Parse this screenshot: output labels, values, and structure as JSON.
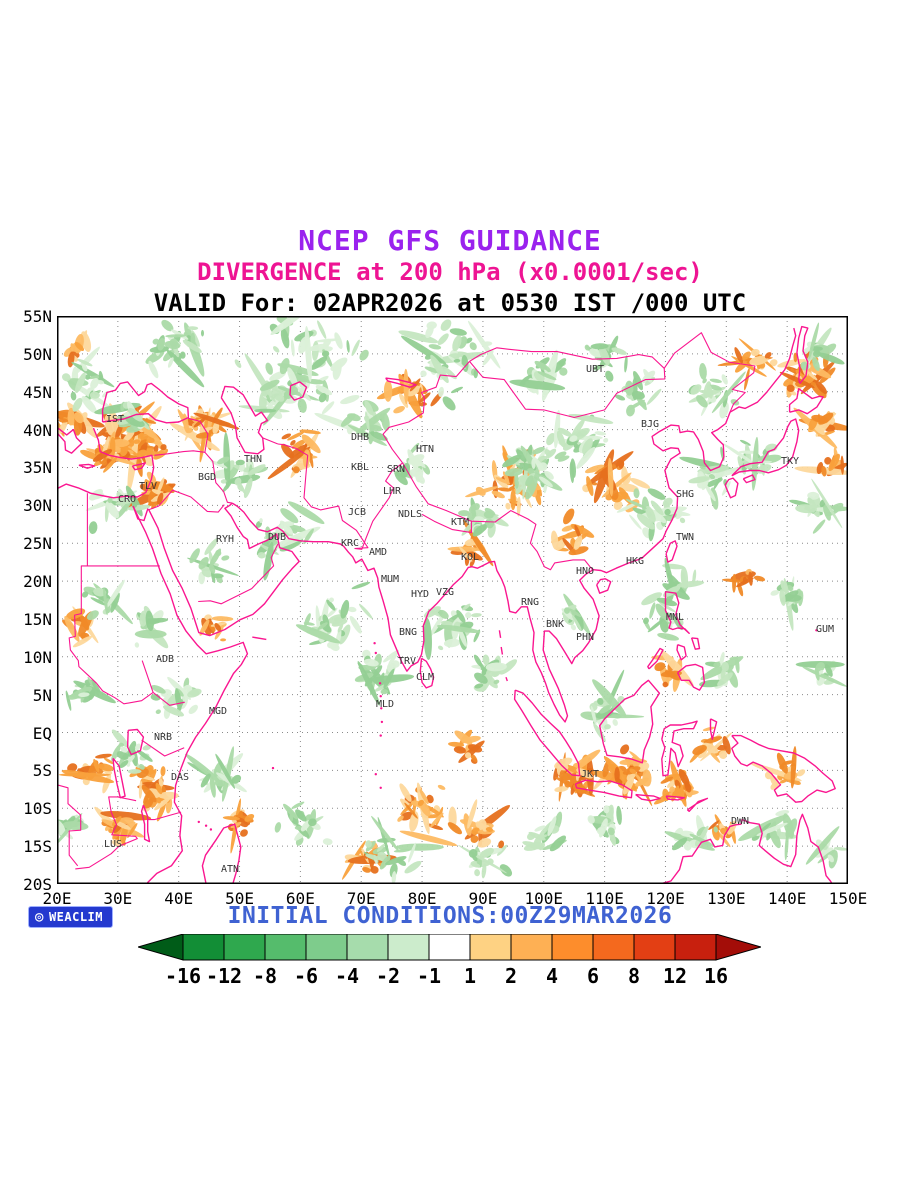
{
  "header": {
    "line1": "NCEP GFS GUIDANCE",
    "line2": "DIVERGENCE at 200 hPa (x0.0001/sec)",
    "line3": "VALID For: 02APR2026 at 0530 IST /000 UTC",
    "line1_color": "#9a22ee",
    "line2_color": "#ee1493",
    "line3_color": "#000000"
  },
  "map": {
    "lon_min": 20,
    "lon_max": 150,
    "lat_min": -20,
    "lat_max": 55,
    "lat_ticks": [
      "55N",
      "50N",
      "45N",
      "40N",
      "35N",
      "30N",
      "25N",
      "20N",
      "15N",
      "10N",
      "5N",
      "EQ",
      "5S",
      "10S",
      "15S",
      "20S"
    ],
    "lon_ticks": [
      "20E",
      "30E",
      "40E",
      "50E",
      "60E",
      "70E",
      "80E",
      "90E",
      "100E",
      "110E",
      "120E",
      "130E",
      "140E",
      "150E"
    ],
    "coast_color": "#fa1690",
    "grid_color": "#8a8a8a",
    "station_color": "#333333",
    "stations": [
      {
        "label": "IST",
        "lon": 29.5,
        "lat": 41.3
      },
      {
        "label": "TLV",
        "lon": 35.0,
        "lat": 32.4
      },
      {
        "label": "CRO",
        "lon": 31.5,
        "lat": 30.7
      },
      {
        "label": "BGD",
        "lon": 44.7,
        "lat": 33.6
      },
      {
        "label": "THN",
        "lon": 52.2,
        "lat": 36.0
      },
      {
        "label": "DHB",
        "lon": 69.8,
        "lat": 38.9
      },
      {
        "label": "KBL",
        "lon": 69.8,
        "lat": 34.9
      },
      {
        "label": "SRN",
        "lon": 75.7,
        "lat": 34.7
      },
      {
        "label": "HTN",
        "lon": 80.5,
        "lat": 37.3
      },
      {
        "label": "LHR",
        "lon": 75.1,
        "lat": 31.8
      },
      {
        "label": "JCB",
        "lon": 69.3,
        "lat": 29.0
      },
      {
        "label": "NDLS",
        "lon": 78.0,
        "lat": 28.7
      },
      {
        "label": "KTM",
        "lon": 86.2,
        "lat": 27.7
      },
      {
        "label": "RYH",
        "lon": 47.6,
        "lat": 25.4
      },
      {
        "label": "DUB",
        "lon": 56.2,
        "lat": 25.7
      },
      {
        "label": "KRC",
        "lon": 68.2,
        "lat": 24.9
      },
      {
        "label": "AMD",
        "lon": 72.8,
        "lat": 23.7
      },
      {
        "label": "KOL",
        "lon": 87.9,
        "lat": 23.0
      },
      {
        "label": "MUM",
        "lon": 74.7,
        "lat": 20.1
      },
      {
        "label": "HYD",
        "lon": 79.7,
        "lat": 18.2
      },
      {
        "label": "VZG",
        "lon": 83.8,
        "lat": 18.4
      },
      {
        "label": "RNG",
        "lon": 97.7,
        "lat": 17.1
      },
      {
        "label": "BNK",
        "lon": 101.8,
        "lat": 14.2
      },
      {
        "label": "PHN",
        "lon": 106.8,
        "lat": 12.5
      },
      {
        "label": "BNG",
        "lon": 77.7,
        "lat": 13.1
      },
      {
        "label": "TRV",
        "lon": 77.5,
        "lat": 9.3
      },
      {
        "label": "CLM",
        "lon": 80.5,
        "lat": 7.2
      },
      {
        "label": "MLD",
        "lon": 73.9,
        "lat": 3.6
      },
      {
        "label": "ADB",
        "lon": 37.7,
        "lat": 9.6
      },
      {
        "label": "MGD",
        "lon": 46.5,
        "lat": 2.7
      },
      {
        "label": "NRB",
        "lon": 37.4,
        "lat": -0.7
      },
      {
        "label": "DAS",
        "lon": 40.2,
        "lat": -6.0
      },
      {
        "label": "LUS",
        "lon": 29.2,
        "lat": -14.9
      },
      {
        "label": "ATN",
        "lon": 48.4,
        "lat": -18.2
      },
      {
        "label": "JKT",
        "lon": 107.6,
        "lat": -5.6
      },
      {
        "label": "DWN",
        "lon": 132.2,
        "lat": -11.8
      },
      {
        "label": "UBT",
        "lon": 108.4,
        "lat": 47.9
      },
      {
        "label": "BJG",
        "lon": 117.5,
        "lat": 40.6
      },
      {
        "label": "TKY",
        "lon": 140.5,
        "lat": 35.7
      },
      {
        "label": "SHG",
        "lon": 123.2,
        "lat": 31.4
      },
      {
        "label": "TWN",
        "lon": 123.2,
        "lat": 25.7
      },
      {
        "label": "HKG",
        "lon": 115.0,
        "lat": 22.5
      },
      {
        "label": "HNO",
        "lon": 106.8,
        "lat": 21.2
      },
      {
        "label": "MNL",
        "lon": 121.6,
        "lat": 15.1
      },
      {
        "label": "GUM",
        "lon": 146.2,
        "lat": 13.5
      }
    ]
  },
  "footer": {
    "logo_text": "WEACLIM",
    "logo_bg": "#2439cf",
    "initial_conditions": "INITIAL CONDITIONS:00Z29MAR2026",
    "initial_conditions_color": "#3f62d2"
  },
  "colorbar": {
    "tick_labels": [
      "-16",
      "-12",
      "-8",
      "-6",
      "-4",
      "-2",
      "-1",
      "1",
      "2",
      "4",
      "6",
      "8",
      "12",
      "16"
    ],
    "segment_colors": [
      "#128e36",
      "#2fa84e",
      "#55bc6c",
      "#7ecc8c",
      "#a6dcac",
      "#cceccc",
      "#ffffff",
      "#fed283",
      "#feb054",
      "#fd8d2c",
      "#f4691e",
      "#e33f14",
      "#c8200e"
    ],
    "left_arrow_color": "#005c18",
    "right_arrow_color": "#a30d08"
  },
  "field": {
    "negative_palette": [
      "#dbf0d8",
      "#c4e6c0",
      "#abdaa8",
      "#93cf94"
    ],
    "positive_palette": [
      "#fdd89c",
      "#fdbb63",
      "#f9a13c",
      "#f08a28",
      "#e6701e"
    ],
    "clusters": [
      [
        33,
        38.5,
        6,
        90,
        1
      ],
      [
        44,
        40.5,
        4,
        45,
        1
      ],
      [
        22,
        41,
        3,
        22,
        1
      ],
      [
        36,
        32,
        3,
        28,
        1
      ],
      [
        28,
        36.5,
        3,
        20,
        1
      ],
      [
        60,
        37,
        4,
        24,
        1
      ],
      [
        78,
        45,
        5,
        22,
        1
      ],
      [
        95,
        33,
        8,
        50,
        1
      ],
      [
        112,
        33,
        6,
        30,
        1
      ],
      [
        104,
        26,
        4,
        20,
        1
      ],
      [
        143,
        47,
        5,
        45,
        1
      ],
      [
        146,
        41,
        3,
        18,
        1
      ],
      [
        135,
        49,
        4,
        20,
        1
      ],
      [
        147,
        36,
        3,
        12,
        1
      ],
      [
        36,
        -8,
        5,
        40,
        1
      ],
      [
        30,
        -13,
        4,
        30,
        1
      ],
      [
        26,
        -5,
        4,
        20,
        1
      ],
      [
        80,
        -10,
        7,
        35,
        1
      ],
      [
        90,
        -14,
        5,
        20,
        1
      ],
      [
        105,
        -6,
        5,
        45,
        1
      ],
      [
        114,
        -5,
        5,
        40,
        1
      ],
      [
        122,
        -7,
        4,
        25,
        1
      ],
      [
        128,
        -2,
        4,
        20,
        1
      ],
      [
        140,
        -5,
        4,
        18,
        1
      ],
      [
        70,
        -17,
        4,
        18,
        1
      ],
      [
        50,
        -12,
        3,
        15,
        1
      ],
      [
        24,
        14,
        3,
        14,
        1
      ],
      [
        46,
        14,
        3,
        14,
        1
      ],
      [
        88,
        24,
        3,
        14,
        1
      ],
      [
        121,
        8,
        3,
        14,
        1
      ],
      [
        133,
        20,
        3,
        12,
        1
      ],
      [
        88,
        -2,
        3,
        14,
        1
      ],
      [
        130,
        -13,
        3,
        12,
        1
      ],
      [
        23,
        51,
        3,
        15,
        1
      ],
      [
        60,
        49,
        12,
        70,
        -1
      ],
      [
        85,
        49,
        9,
        45,
        -1
      ],
      [
        40,
        51,
        7,
        35,
        -1
      ],
      [
        25,
        46,
        5,
        28,
        -1
      ],
      [
        32,
        41,
        4,
        24,
        -1
      ],
      [
        50,
        34,
        5,
        28,
        -1
      ],
      [
        57,
        26,
        6,
        28,
        -1
      ],
      [
        65,
        15,
        7,
        40,
        -1
      ],
      [
        73,
        8,
        5,
        30,
        -1
      ],
      [
        85,
        14,
        6,
        34,
        -1
      ],
      [
        92,
        8,
        4,
        20,
        -1
      ],
      [
        98,
        35,
        7,
        48,
        -1
      ],
      [
        106,
        38,
        6,
        34,
        -1
      ],
      [
        118,
        29,
        6,
        34,
        -1
      ],
      [
        127,
        34,
        5,
        24,
        -1
      ],
      [
        135,
        36,
        5,
        24,
        -1
      ],
      [
        145,
        30,
        5,
        20,
        -1
      ],
      [
        128,
        45,
        5,
        24,
        -1
      ],
      [
        115,
        45,
        5,
        22,
        -1
      ],
      [
        30,
        30,
        5,
        18,
        -1
      ],
      [
        28,
        18,
        5,
        20,
        -1
      ],
      [
        40,
        5,
        5,
        24,
        -1
      ],
      [
        33,
        -3,
        5,
        22,
        -1
      ],
      [
        47,
        -6,
        5,
        22,
        -1
      ],
      [
        60,
        -12,
        6,
        24,
        -1
      ],
      [
        75,
        -16,
        6,
        24,
        -1
      ],
      [
        90,
        -17,
        5,
        20,
        -1
      ],
      [
        100,
        -14,
        5,
        20,
        -1
      ],
      [
        110,
        3,
        5,
        24,
        -1
      ],
      [
        120,
        15,
        5,
        22,
        -1
      ],
      [
        130,
        8,
        4,
        18,
        -1
      ],
      [
        140,
        18,
        4,
        18,
        -1
      ],
      [
        147,
        8,
        3,
        14,
        -1
      ],
      [
        55,
        44,
        5,
        24,
        -1
      ],
      [
        70,
        41,
        5,
        24,
        -1
      ],
      [
        78,
        35,
        4,
        20,
        -1
      ],
      [
        90,
        28,
        4,
        22,
        -1
      ],
      [
        45,
        22,
        4,
        18,
        -1
      ],
      [
        35,
        14,
        4,
        18,
        -1
      ],
      [
        110,
        -12,
        5,
        20,
        -1
      ],
      [
        125,
        -14,
        4,
        16,
        -1
      ],
      [
        138,
        -13,
        4,
        16,
        -1
      ],
      [
        147,
        -16,
        3,
        12,
        -1
      ],
      [
        25,
        5,
        4,
        16,
        -1
      ],
      [
        22,
        -12,
        3,
        14,
        -1
      ],
      [
        145,
        50,
        4,
        18,
        -1
      ],
      [
        100,
        47,
        5,
        22,
        -1
      ],
      [
        110,
        50,
        4,
        16,
        -1
      ],
      [
        123,
        20,
        4,
        18,
        -1
      ],
      [
        105,
        15,
        3,
        14,
        -1
      ]
    ]
  }
}
